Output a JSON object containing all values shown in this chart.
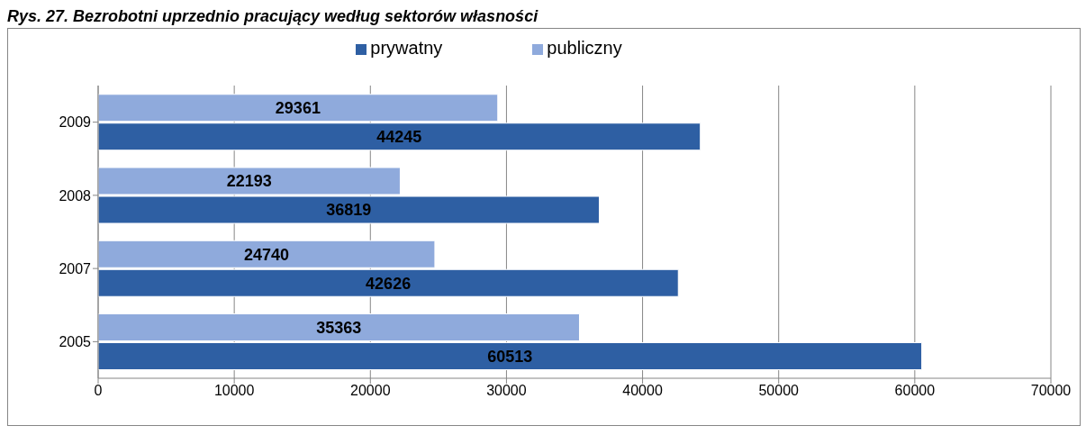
{
  "chart_data": {
    "type": "bar",
    "orientation": "horizontal",
    "title": "Rys. 27. Bezrobotni uprzednio pracujący według sektorów własności",
    "categories": [
      "2009",
      "2008",
      "2007",
      "2005"
    ],
    "series": [
      {
        "name": "publiczny",
        "color": "#8faadc",
        "values": [
          29361,
          22193,
          24740,
          35363
        ]
      },
      {
        "name": "prywatny",
        "color": "#2e5fa3",
        "values": [
          44245,
          36819,
          42626,
          60513
        ]
      }
    ],
    "xlim": [
      0,
      70000
    ],
    "xticks": [
      0,
      10000,
      20000,
      30000,
      40000,
      50000,
      60000,
      70000
    ],
    "grid": "x",
    "legend": "top",
    "data_labels": true
  }
}
